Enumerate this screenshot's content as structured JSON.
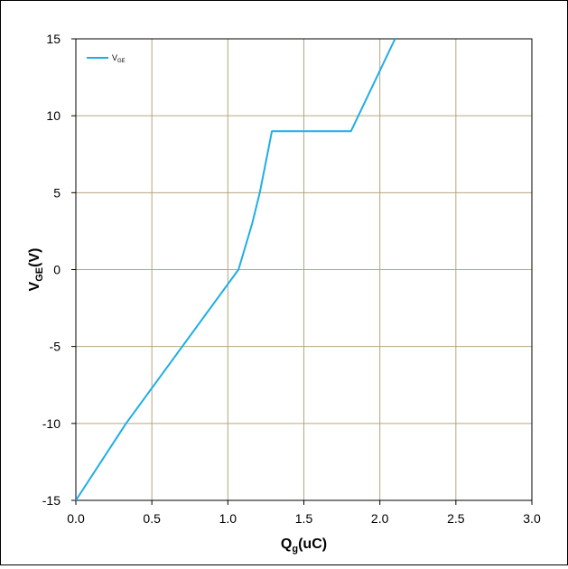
{
  "chart_data": {
    "type": "line",
    "title": "",
    "xlabel": {
      "main": "Q",
      "sub": "g",
      "tail": "(uC)"
    },
    "ylabel": {
      "main": "V",
      "sub": "GE",
      "tail": "(V)"
    },
    "xlim": [
      0.0,
      3.0
    ],
    "ylim": [
      -15,
      15
    ],
    "x_ticks": [
      0.0,
      0.5,
      1.0,
      1.5,
      2.0,
      2.5,
      3.0
    ],
    "x_tick_labels": [
      "0.0",
      "0.5",
      "1.0",
      "1.5",
      "2.0",
      "2.5",
      "3.0"
    ],
    "y_ticks": [
      -15,
      -10,
      -5,
      0,
      5,
      10,
      15
    ],
    "y_tick_labels": [
      "-15",
      "-10",
      "-5",
      "0",
      "5",
      "10",
      "15"
    ],
    "grid": true,
    "legend_position": "top-left",
    "series": [
      {
        "name": {
          "main": "V",
          "sub": "GE"
        },
        "color": "#1EAEE6",
        "x": [
          0.0,
          0.33,
          1.07,
          1.16,
          1.21,
          1.27,
          1.29,
          1.81,
          2.1
        ],
        "y": [
          -15,
          -10,
          0,
          3,
          5,
          8,
          9,
          9,
          15
        ]
      }
    ],
    "grid_color": "#B6A67C",
    "axis_color": "#000000"
  }
}
